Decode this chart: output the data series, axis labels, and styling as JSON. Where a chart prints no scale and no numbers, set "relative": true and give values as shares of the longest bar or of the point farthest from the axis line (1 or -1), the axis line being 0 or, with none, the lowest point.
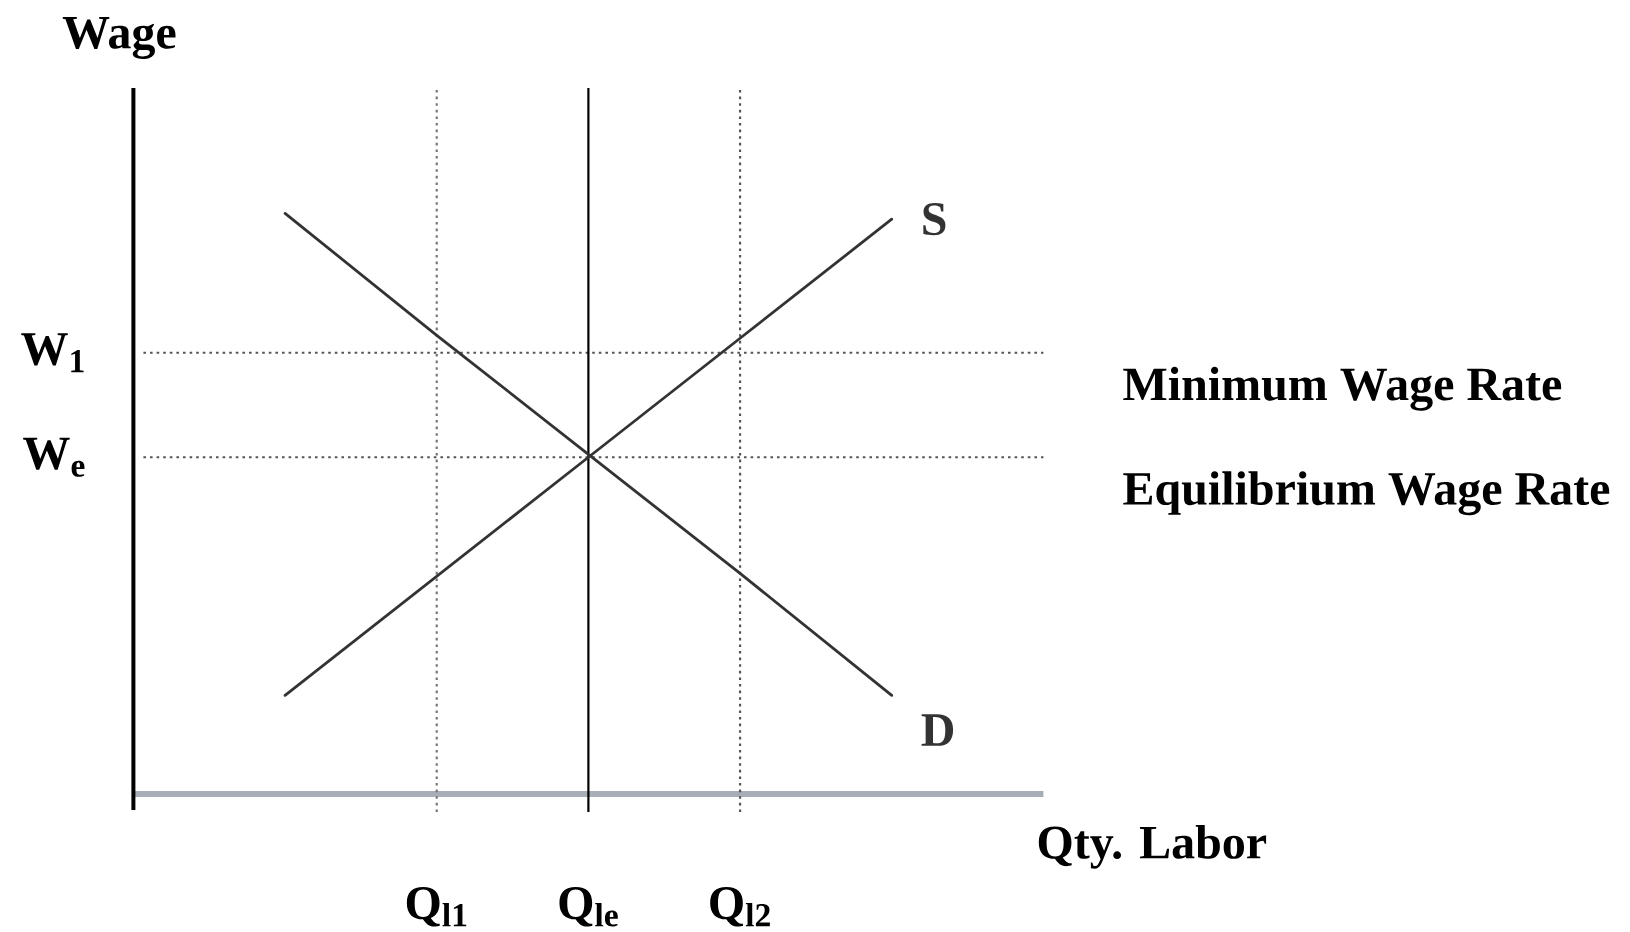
{
  "chart_data": {
    "type": "line",
    "relative": true,
    "xlabel": "Qty. Labor",
    "ylabel": "Wage",
    "categories": [
      null,
      "Q$_{l1}$",
      "Q$_{le}$",
      "Q$_{l2}$",
      null
    ],
    "series": [
      {
        "name": "S",
        "color": "#333333",
        "values": [
          0.17,
          0.375,
          0.58,
          0.785,
          0.99
        ]
      },
      {
        "name": "D",
        "color": "#333333",
        "values": [
          1,
          0.79,
          0.585,
          0.38,
          0.17
        ]
      }
    ],
    "ref_lines": [
      {
        "axis": "y",
        "value": 0.76,
        "label": "W$_{1}$",
        "line_style": "dotted",
        "color": "#555555"
      },
      {
        "axis": "y",
        "value": 0.58,
        "label": "W$_{e}$",
        "line_style": "dotted",
        "color": "#555555"
      },
      {
        "axis": "x",
        "value": "Q$_{l1}$",
        "line_style": "dotted",
        "color": "#777777"
      },
      {
        "axis": "x",
        "value": "Q$_{le}$",
        "line_style": "solid",
        "color": "#000000"
      },
      {
        "axis": "x",
        "value": "Q$_{l2}$",
        "line_style": "dotted",
        "color": "#555555"
      }
    ],
    "annotations": [
      "Minimum Wage Rate",
      "Equilibrium Wage Rate"
    ]
  }
}
